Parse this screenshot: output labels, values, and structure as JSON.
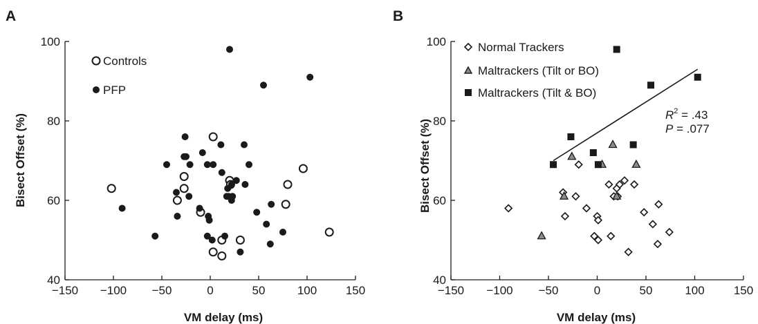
{
  "chart_data": [
    {
      "type": "scatter",
      "panel_label": "A",
      "xlabel": "VM delay (ms)",
      "ylabel": "Bisect Offset (%)",
      "xlim": [
        -150,
        150
      ],
      "ylim": [
        40,
        100
      ],
      "xticks": [
        -150,
        -100,
        -50,
        0,
        50,
        100,
        150
      ],
      "yticks": [
        40,
        60,
        80,
        100
      ],
      "xtick_labels": [
        "−150",
        "−100",
        "−50",
        "0",
        "50",
        "100",
        "150"
      ],
      "ytick_labels": [
        "40",
        "60",
        "80",
        "100"
      ],
      "legend_position": "top-left",
      "grid": false,
      "series": [
        {
          "name": "Controls",
          "marker": "open-circle",
          "color": "#1a1a1a",
          "points": [
            [
              -102,
              63
            ],
            [
              -34,
              60
            ],
            [
              -10,
              57
            ],
            [
              -27,
              66
            ],
            [
              -27,
              63
            ],
            [
              3,
              76
            ],
            [
              20,
              65
            ],
            [
              21,
              64
            ],
            [
              12,
              50
            ],
            [
              31,
              50
            ],
            [
              3,
              47
            ],
            [
              12,
              46
            ],
            [
              78,
              59
            ],
            [
              80,
              64
            ],
            [
              96,
              68
            ],
            [
              123,
              52
            ]
          ]
        },
        {
          "name": "PFP",
          "marker": "filled-circle",
          "color": "#1a1a1a",
          "points": [
            [
              -91,
              58
            ],
            [
              -57,
              51
            ],
            [
              -45,
              69
            ],
            [
              -35,
              62
            ],
            [
              -34,
              56
            ],
            [
              -26,
              76
            ],
            [
              -27,
              71
            ],
            [
              -25,
              71
            ],
            [
              -21,
              69
            ],
            [
              -22,
              61
            ],
            [
              -11,
              58
            ],
            [
              -8,
              72
            ],
            [
              -3,
              69
            ],
            [
              3,
              69
            ],
            [
              -2,
              56
            ],
            [
              -1,
              55
            ],
            [
              -3,
              51
            ],
            [
              2,
              50
            ],
            [
              11,
              74
            ],
            [
              12,
              67
            ],
            [
              17,
              61
            ],
            [
              19,
              61
            ],
            [
              23,
              61
            ],
            [
              18,
              63
            ],
            [
              22,
              64
            ],
            [
              27,
              65
            ],
            [
              35,
              74
            ],
            [
              36,
              64
            ],
            [
              15,
              51
            ],
            [
              31,
              47
            ],
            [
              40,
              69
            ],
            [
              48,
              57
            ],
            [
              58,
              54
            ],
            [
              62,
              49
            ],
            [
              63,
              59
            ],
            [
              75,
              52
            ],
            [
              20,
              98
            ],
            [
              55,
              89
            ],
            [
              103,
              91
            ],
            [
              22,
              60
            ]
          ]
        }
      ]
    },
    {
      "type": "scatter",
      "panel_label": "B",
      "xlabel": "VM delay (ms)",
      "ylabel": "Bisect Offset (%)",
      "xlim": [
        -150,
        150
      ],
      "ylim": [
        40,
        100
      ],
      "xticks": [
        -150,
        -100,
        -50,
        0,
        50,
        100,
        150
      ],
      "yticks": [
        40,
        60,
        80,
        100
      ],
      "xtick_labels": [
        "−150",
        "−100",
        "−50",
        "0",
        "50",
        "100",
        "150"
      ],
      "ytick_labels": [
        "40",
        "60",
        "80",
        "100"
      ],
      "legend_position": "top-left",
      "grid": false,
      "series": [
        {
          "name": "Normal Trackers",
          "marker": "open-diamond",
          "color": "#1a1a1a",
          "points": [
            [
              -91,
              58
            ],
            [
              -35,
              62
            ],
            [
              -33,
              56
            ],
            [
              -22,
              61
            ],
            [
              -19,
              69
            ],
            [
              -11,
              58
            ],
            [
              -3,
              51
            ],
            [
              0,
              56
            ],
            [
              1,
              55
            ],
            [
              1,
              50
            ],
            [
              12,
              64
            ],
            [
              14,
              51
            ],
            [
              17,
              61
            ],
            [
              20,
              63
            ],
            [
              21,
              61
            ],
            [
              23,
              64
            ],
            [
              28,
              65
            ],
            [
              32,
              47
            ],
            [
              38,
              64
            ],
            [
              48,
              57
            ],
            [
              57,
              54
            ],
            [
              62,
              49
            ],
            [
              63,
              59
            ],
            [
              74,
              52
            ]
          ]
        },
        {
          "name": "Maltrackers (Tilt or BO)",
          "marker": "gray-triangle",
          "color": "#8c8c8c",
          "points": [
            [
              -57,
              51
            ],
            [
              -34,
              61
            ],
            [
              -26,
              71
            ],
            [
              5,
              69
            ],
            [
              16,
              74
            ],
            [
              20,
              61
            ],
            [
              40,
              69
            ]
          ]
        },
        {
          "name": "Maltrackers (Tilt & BO)",
          "marker": "filled-square",
          "color": "#1a1a1a",
          "points": [
            [
              -45,
              69
            ],
            [
              -27,
              76
            ],
            [
              -4,
              72
            ],
            [
              1,
              69
            ],
            [
              20,
              98
            ],
            [
              37,
              74
            ],
            [
              55,
              89
            ],
            [
              103,
              91
            ]
          ]
        }
      ],
      "fit_line": {
        "x": [
          -45,
          103
        ],
        "y": [
          70,
          93
        ]
      },
      "annotations": {
        "r_squared_symbol": "R",
        "r_squared_exponent": "2",
        "r_squared_value": " = .43",
        "p_value_symbol": "P",
        "p_value_value": " = .077"
      }
    }
  ]
}
